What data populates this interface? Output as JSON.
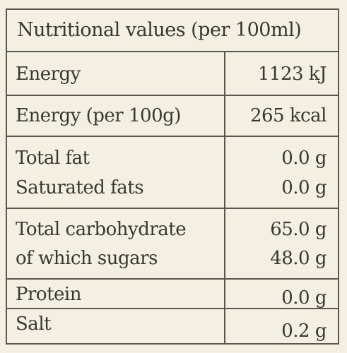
{
  "table": {
    "header": "Nutritional values (per 100ml)",
    "rows": [
      {
        "lines": [
          {
            "name": "Energy",
            "value": "1123 kJ"
          }
        ]
      },
      {
        "lines": [
          {
            "name": "Energy (per 100g)",
            "value": "265 kcal"
          }
        ]
      },
      {
        "lines": [
          {
            "name": "Total fat",
            "value": "0.0 g"
          },
          {
            "name": "Saturated fats",
            "value": "0.0 g"
          }
        ]
      },
      {
        "lines": [
          {
            "name": "Total carbohydrate",
            "value": "65.0 g"
          },
          {
            "name": "of which sugars",
            "value": "48.0 g"
          }
        ]
      },
      {
        "lines": [
          {
            "name": "Protein",
            "value": "0.0 g"
          }
        ]
      },
      {
        "lines": [
          {
            "name": "Salt",
            "value": "0.2 g"
          }
        ]
      }
    ]
  }
}
